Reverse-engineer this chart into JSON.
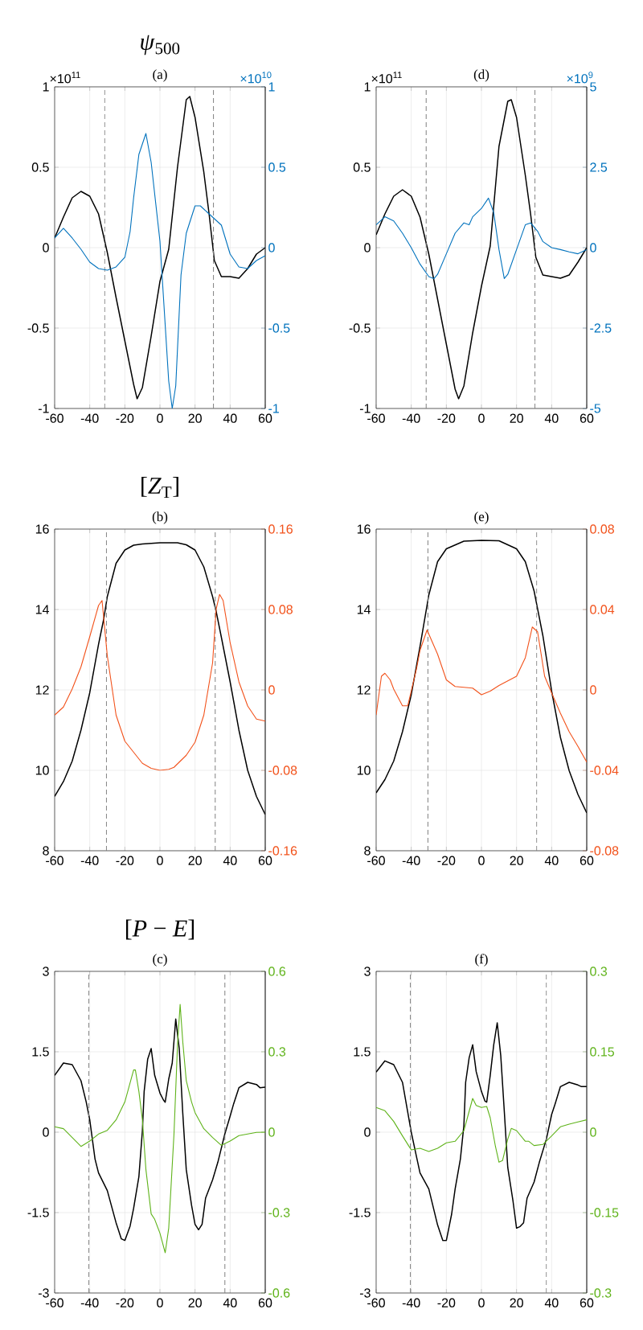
{
  "chart_data": [
    {
      "type": "line",
      "title": "*ψ*$_{500}$",
      "subtitle": "(a)",
      "annotations": [
        "×10$^{11}$",
        "×10$^{10}$"
      ],
      "xlim": [
        -60,
        60
      ],
      "xticks": [
        -60,
        -40,
        -20,
        0,
        20,
        40,
        60
      ],
      "ylim": [
        -1,
        1
      ],
      "yticks": [
        -1,
        -0.5,
        0,
        0.5,
        1
      ],
      "y2lim": [
        -1,
        1
      ],
      "y2ticks": [
        -1,
        -0.5,
        0,
        0.5,
        1
      ],
      "grid": true,
      "ref_lines": [
        {
          "axis": "x",
          "value": -31.5,
          "color": "#808080",
          "line_style": "dashed"
        },
        {
          "axis": "x",
          "value": 30.5,
          "color": "#808080",
          "line_style": "dashed"
        }
      ],
      "series": [
        {
          "color": "#000000",
          "x": [
            -60,
            -55,
            -50,
            -45,
            -40,
            -35,
            -30,
            -25,
            -20,
            -15,
            -13,
            -10,
            -5,
            0,
            5,
            10,
            15,
            17,
            20,
            25,
            28,
            31,
            35,
            40,
            45,
            50,
            55,
            60
          ],
          "values": [
            0.06,
            0.19,
            0.31,
            0.35,
            0.32,
            0.21,
            -0.03,
            -0.31,
            -0.58,
            -0.85,
            -0.94,
            -0.87,
            -0.55,
            -0.21,
            -0.01,
            0.5,
            0.92,
            0.94,
            0.81,
            0.47,
            0.21,
            -0.08,
            -0.18,
            -0.18,
            -0.19,
            -0.13,
            -0.04,
            0
          ]
        },
        {
          "color": "#0072bd",
          "axis": "y2",
          "x": [
            -60,
            -55,
            -50,
            -45,
            -40,
            -35,
            -30,
            -25,
            -20,
            -17,
            -15,
            -12,
            -8,
            -5,
            0,
            5,
            7,
            9,
            12,
            15,
            20,
            23,
            27,
            30,
            35,
            40,
            45,
            50,
            55,
            60
          ],
          "values": [
            0.06,
            0.12,
            0.06,
            -0.01,
            -0.09,
            -0.13,
            -0.14,
            -0.12,
            -0.06,
            0.1,
            0.31,
            0.58,
            0.71,
            0.53,
            0.04,
            -0.83,
            -1,
            -0.86,
            -0.17,
            0.09,
            0.26,
            0.26,
            0.22,
            0.19,
            0.14,
            -0.04,
            -0.12,
            -0.13,
            -0.08,
            -0.05
          ]
        }
      ]
    },
    {
      "type": "line",
      "subtitle": "(d)",
      "annotations": [
        "×10$^{11}$",
        "×10$^{9}$"
      ],
      "xlim": [
        -60,
        60
      ],
      "xticks": [
        -60,
        -40,
        -20,
        0,
        20,
        40,
        60
      ],
      "ylim": [
        -1,
        1
      ],
      "yticks": [
        -1,
        -0.5,
        0,
        0.5,
        1
      ],
      "y2lim": [
        -5,
        5
      ],
      "y2ticks": [
        -5,
        -2.5,
        0,
        2.5,
        5
      ],
      "grid": true,
      "ref_lines": [
        {
          "axis": "x",
          "value": -31.5,
          "color": "#808080",
          "line_style": "dashed"
        },
        {
          "axis": "x",
          "value": 30.5,
          "color": "#808080",
          "line_style": "dashed"
        }
      ],
      "series": [
        {
          "color": "#000000",
          "x": [
            -60,
            -55,
            -50,
            -45,
            -40,
            -35,
            -30,
            -25,
            -20,
            -15,
            -13,
            -10,
            -5,
            0,
            5,
            10,
            15,
            17,
            20,
            25,
            28,
            31,
            35,
            40,
            45,
            50,
            55,
            60
          ],
          "values": [
            0.08,
            0.21,
            0.32,
            0.36,
            0.32,
            0.19,
            -0.04,
            -0.32,
            -0.6,
            -0.88,
            -0.94,
            -0.86,
            -0.53,
            -0.24,
            0.01,
            0.63,
            0.91,
            0.92,
            0.81,
            0.45,
            0.21,
            -0.06,
            -0.17,
            -0.18,
            -0.19,
            -0.17,
            -0.09,
            0
          ]
        },
        {
          "color": "#0072bd",
          "axis": "y2",
          "x": [
            -60,
            -55,
            -50,
            -45,
            -40,
            -35,
            -30,
            -27,
            -25,
            -20,
            -15,
            -10,
            -7,
            -5,
            0,
            4,
            7,
            10,
            13,
            15,
            20,
            25,
            28,
            32,
            35,
            40,
            45,
            50,
            55,
            60
          ],
          "values": [
            0.71,
            0.96,
            0.83,
            0.45,
            0,
            -0.51,
            -0.9,
            -0.96,
            -0.83,
            -0.19,
            0.45,
            0.77,
            0.71,
            0.96,
            1.22,
            1.54,
            1.09,
            -0.06,
            -0.96,
            -0.83,
            -0.06,
            0.71,
            0.77,
            0.51,
            0.19,
            0,
            -0.06,
            -0.13,
            -0.19,
            -0.06
          ]
        }
      ]
    },
    {
      "type": "line",
      "title": "[*Z*$_{T}$]",
      "subtitle": "(b)",
      "xlim": [
        -60,
        60
      ],
      "xticks": [
        -60,
        -40,
        -20,
        0,
        20,
        40,
        60
      ],
      "ylim": [
        8,
        16
      ],
      "yticks": [
        8,
        10,
        12,
        14,
        16
      ],
      "y2lim": [
        -0.16,
        0.16
      ],
      "y2ticks": [
        -0.16,
        -0.08,
        0,
        0.08,
        0.16
      ],
      "grid": true,
      "ref_lines": [
        {
          "axis": "x",
          "value": -30.5,
          "color": "#808080",
          "line_style": "dashed"
        },
        {
          "axis": "x",
          "value": 31.5,
          "color": "#808080",
          "line_style": "dashed"
        }
      ],
      "series": [
        {
          "color": "#000000",
          "x": [
            -60,
            -55,
            -50,
            -45,
            -40,
            -35,
            -32,
            -30,
            -25,
            -20,
            -15,
            -10,
            0,
            10,
            15,
            20,
            25,
            30,
            32,
            35,
            40,
            45,
            50,
            55,
            60
          ],
          "values": [
            9.35,
            9.72,
            10.23,
            11.0,
            11.93,
            13.13,
            13.77,
            14.32,
            15.15,
            15.48,
            15.6,
            15.63,
            15.66,
            15.66,
            15.61,
            15.48,
            15.06,
            14.32,
            13.96,
            13.31,
            12.2,
            11.0,
            10.0,
            9.35,
            8.9
          ]
        },
        {
          "color": "#f2521b",
          "axis": "y2",
          "x": [
            -60,
            -55,
            -50,
            -45,
            -40,
            -35,
            -33,
            -30,
            -25,
            -20,
            -15,
            -10,
            -5,
            0,
            5,
            8,
            15,
            20,
            25,
            30,
            32,
            34,
            36,
            40,
            45,
            50,
            55,
            60
          ],
          "values": [
            -0.025,
            -0.017,
            0.001,
            0.023,
            0.053,
            0.084,
            0.089,
            0.034,
            -0.025,
            -0.051,
            -0.062,
            -0.073,
            -0.078,
            -0.08,
            -0.079,
            -0.077,
            -0.065,
            -0.052,
            -0.025,
            0.027,
            0.08,
            0.095,
            0.089,
            0.047,
            0.008,
            -0.016,
            -0.029,
            -0.031
          ]
        }
      ]
    },
    {
      "type": "line",
      "subtitle": "(e)",
      "xlim": [
        -60,
        60
      ],
      "xticks": [
        -60,
        -40,
        -20,
        0,
        20,
        40,
        60
      ],
      "ylim": [
        8,
        16
      ],
      "yticks": [
        8,
        10,
        12,
        14,
        16
      ],
      "y2lim": [
        -0.08,
        0.08
      ],
      "y2ticks": [
        -0.08,
        -0.04,
        0,
        0.04,
        0.08
      ],
      "grid": true,
      "ref_lines": [
        {
          "axis": "x",
          "value": -30.5,
          "color": "#808080",
          "line_style": "dashed"
        },
        {
          "axis": "x",
          "value": 31.5,
          "color": "#808080",
          "line_style": "dashed"
        }
      ],
      "series": [
        {
          "color": "#000000",
          "x": [
            -60,
            -55,
            -50,
            -45,
            -40,
            -35,
            -30,
            -25,
            -20,
            -10,
            0,
            10,
            20,
            25,
            30,
            35,
            40,
            45,
            50,
            55,
            60
          ],
          "values": [
            9.44,
            9.77,
            10.23,
            10.96,
            11.88,
            13.08,
            14.36,
            15.19,
            15.51,
            15.7,
            15.72,
            15.71,
            15.51,
            15.19,
            14.46,
            13.35,
            11.97,
            10.82,
            9.99,
            9.4,
            8.94
          ]
        },
        {
          "color": "#f2521b",
          "axis": "y2",
          "x": [
            -60,
            -57,
            -55,
            -52,
            -50,
            -45,
            -42,
            -40,
            -37,
            -35,
            -31,
            -25,
            -20,
            -15,
            -10,
            -5,
            0,
            5,
            10,
            20,
            25,
            29,
            32,
            36,
            40,
            45,
            50,
            55,
            60
          ],
          "values": [
            -0.0125,
            0.0068,
            0.0083,
            0.005,
            0.0004,
            -0.0079,
            -0.0079,
            -0.0006,
            0.0105,
            0.0197,
            0.0298,
            0.0178,
            0.005,
            0.0017,
            0.0013,
            0.0009,
            -0.0024,
            -0.0006,
            0.0022,
            0.0068,
            0.016,
            0.0313,
            0.0289,
            0.0068,
            -0.0015,
            -0.0116,
            -0.0208,
            -0.0281,
            -0.0359
          ]
        }
      ]
    },
    {
      "type": "line",
      "title": "[*P* − *E*]",
      "subtitle": "(c)",
      "xlim": [
        -60,
        60
      ],
      "xticks": [
        -60,
        -40,
        -20,
        0,
        20,
        40,
        60
      ],
      "ylim": [
        -3,
        3
      ],
      "yticks": [
        -3,
        -1.5,
        0,
        1.5,
        3
      ],
      "y2lim": [
        -0.6,
        0.6
      ],
      "y2ticks": [
        -0.6,
        -0.3,
        0,
        0.3,
        0.6
      ],
      "grid": true,
      "ref_lines": [
        {
          "axis": "x",
          "value": -40.5,
          "color": "#808080",
          "line_style": "dashed"
        },
        {
          "axis": "x",
          "value": 37,
          "color": "#808080",
          "line_style": "dashed"
        }
      ],
      "series": [
        {
          "color": "#000000",
          "x": [
            -60,
            -55,
            -50,
            -45,
            -42,
            -40,
            -37,
            -35,
            -30,
            -25,
            -22,
            -20,
            -17,
            -15,
            -12,
            -10,
            -9,
            -7,
            -5,
            -3,
            0,
            2,
            3,
            5,
            7,
            9,
            11,
            13,
            15,
            18,
            20,
            22,
            24,
            26,
            30,
            33,
            37,
            40,
            42,
            45,
            50,
            55,
            57,
            60
          ],
          "values": [
            1.06,
            1.29,
            1.26,
            0.96,
            0.56,
            0.23,
            -0.5,
            -0.76,
            -1.09,
            -1.69,
            -1.99,
            -2.02,
            -1.75,
            -1.42,
            -0.83,
            0.03,
            0.76,
            1.36,
            1.56,
            1.06,
            0.73,
            0.6,
            0.56,
            0.99,
            1.29,
            2.11,
            1.56,
            0.36,
            -0.7,
            -1.36,
            -1.72,
            -1.82,
            -1.72,
            -1.23,
            -0.89,
            -0.56,
            -0.03,
            0.3,
            0.53,
            0.83,
            0.93,
            0.89,
            0.83,
            0.84
          ]
        },
        {
          "color": "#5fb31a",
          "axis": "y2",
          "x": [
            -60,
            -55,
            -50,
            -45,
            -40,
            -35,
            -30,
            -25,
            -20,
            -15,
            -14,
            -12,
            -10,
            -8,
            -5,
            -3,
            0,
            3,
            5,
            8,
            10,
            11.5,
            13,
            15,
            18,
            20,
            25,
            30,
            35,
            40,
            45,
            50,
            55,
            60
          ],
          "values": [
            0.02,
            0.013,
            -0.02,
            -0.053,
            -0.033,
            -0.007,
            0.007,
            0.046,
            0.113,
            0.232,
            0.232,
            0.152,
            0.046,
            -0.139,
            -0.305,
            -0.325,
            -0.377,
            -0.45,
            -0.358,
            -0.007,
            0.325,
            0.477,
            0.338,
            0.192,
            0.113,
            0.073,
            0.013,
            -0.02,
            -0.049,
            -0.033,
            -0.013,
            -0.007,
            -0.001,
            0
          ]
        }
      ]
    },
    {
      "type": "line",
      "subtitle": "(f)",
      "xlim": [
        -60,
        60
      ],
      "xticks": [
        -60,
        -40,
        -20,
        0,
        20,
        40,
        60
      ],
      "ylim": [
        -3,
        3
      ],
      "yticks": [
        -3,
        -1.5,
        0,
        1.5,
        3
      ],
      "y2lim": [
        -0.3,
        0.3
      ],
      "y2ticks": [
        -0.3,
        -0.15,
        0,
        0.15,
        0.3
      ],
      "grid": true,
      "ref_lines": [
        {
          "axis": "x",
          "value": -40.5,
          "color": "#808080",
          "line_style": "dashed"
        },
        {
          "axis": "x",
          "value": 37,
          "color": "#808080",
          "line_style": "dashed"
        }
      ],
      "series": [
        {
          "color": "#000000",
          "x": [
            -60,
            -55,
            -50,
            -45,
            -40,
            -37,
            -35,
            -30,
            -25,
            -22,
            -20,
            -17,
            -15,
            -12,
            -10,
            -9,
            -7,
            -5,
            -3,
            0,
            2,
            3,
            5,
            7,
            9,
            11,
            13,
            15,
            18,
            20,
            22,
            24,
            26,
            30,
            33,
            37,
            40,
            42,
            45,
            50,
            55,
            57,
            60
          ],
          "values": [
            1.12,
            1.33,
            1.26,
            0.93,
            0,
            -0.46,
            -0.76,
            -1.06,
            -1.73,
            -2.02,
            -2.02,
            -1.53,
            -1.06,
            -0.5,
            0.13,
            0.93,
            1.39,
            1.63,
            1.13,
            0.76,
            0.58,
            0.56,
            1.06,
            1.63,
            2.04,
            1.43,
            0.4,
            -0.66,
            -1.29,
            -1.79,
            -1.76,
            -1.69,
            -1.23,
            -0.93,
            -0.56,
            -0.13,
            0.33,
            0.53,
            0.85,
            0.93,
            0.88,
            0.85,
            0.85
          ]
        },
        {
          "color": "#5fb31a",
          "axis": "y2",
          "x": [
            -60,
            -55,
            -50,
            -45,
            -40,
            -35,
            -30,
            -25,
            -20,
            -15,
            -10,
            -5,
            -3,
            0,
            3,
            5,
            8,
            10,
            12,
            15,
            17,
            20,
            25,
            27,
            30,
            35,
            40,
            45,
            50,
            55,
            60
          ],
          "values": [
            0.046,
            0.04,
            0.02,
            -0.007,
            -0.033,
            -0.03,
            -0.036,
            -0.03,
            -0.02,
            -0.017,
            0.003,
            0.063,
            0.05,
            0.046,
            0.048,
            0.027,
            -0.027,
            -0.056,
            -0.053,
            -0.013,
            0.007,
            0.003,
            -0.017,
            -0.017,
            -0.025,
            -0.023,
            -0.007,
            0.01,
            0.015,
            0.019,
            0.023
          ]
        }
      ]
    }
  ]
}
